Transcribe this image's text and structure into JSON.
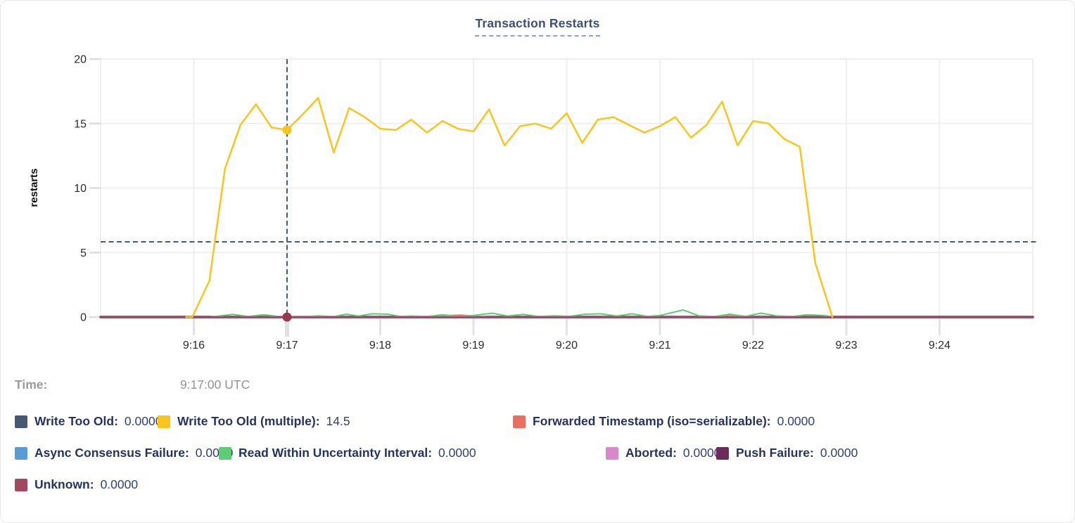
{
  "title": "Transaction Restarts",
  "tooltip": {
    "time_label": "Time:",
    "time_value": "9:17:00 UTC"
  },
  "legend": {
    "rows": [
      {
        "items": [
          {
            "label": "Write Too Old:",
            "value": "0.0000",
            "color": "#475872"
          },
          {
            "label": "Write Too Old (multiple):",
            "value": "14.5",
            "color": "#f8c51f"
          },
          {
            "label": "Forwarded Timestamp (iso=serializable):",
            "value": "0.0000",
            "color": "#e86f62"
          }
        ]
      },
      {
        "items": [
          {
            "label": "Async Consensus Failure:",
            "value": "0.0000",
            "color": "#5b9bd3"
          },
          {
            "label": "Read Within Uncertainty Interval:",
            "value": "0.0000",
            "color": "#5ecb77"
          },
          {
            "label": "Aborted:",
            "value": "0.0000",
            "color": "#d989cb"
          },
          {
            "label": "Push Failure:",
            "value": "0.0000",
            "color": "#6b2c5c"
          }
        ]
      },
      {
        "items": [
          {
            "label": "Unknown:",
            "value": "0.0000",
            "color": "#a04a5e"
          }
        ]
      }
    ]
  },
  "chart_data": {
    "type": "line",
    "title": "Transaction Restarts",
    "xlabel": "",
    "ylabel": "restarts",
    "ylim": [
      0,
      20
    ],
    "yticks": [
      0,
      5,
      10,
      15,
      20
    ],
    "x_start": "9:15:00",
    "x_end": "9:25:00",
    "x_unit": "seconds after 9:15:00 UTC",
    "x_domain_seconds": [
      0,
      600
    ],
    "grid": true,
    "legend_position": "bottom",
    "xticks": [
      {
        "label": "9:16",
        "s": 60
      },
      {
        "label": "9:17",
        "s": 120
      },
      {
        "label": "9:18",
        "s": 180
      },
      {
        "label": "9:19",
        "s": 240
      },
      {
        "label": "9:20",
        "s": 300
      },
      {
        "label": "9:21",
        "s": 360
      },
      {
        "label": "9:22",
        "s": 420
      },
      {
        "label": "9:23",
        "s": 480
      },
      {
        "label": "9:24",
        "s": 540
      }
    ],
    "crosshair": {
      "time": "9:17:00",
      "s": 120,
      "hline_value": 5.83,
      "dots": [
        {
          "series": "Write Too Old (multiple)",
          "value": 14.5
        },
        {
          "series": "Unknown",
          "value": 0
        }
      ]
    },
    "series": [
      {
        "name": "Write Too Old",
        "color": "#475872",
        "points": [
          [
            0,
            0
          ],
          [
            600,
            0
          ]
        ]
      },
      {
        "name": "Async Consensus Failure",
        "color": "#5b9bd3",
        "points": [
          [
            0,
            0
          ],
          [
            600,
            0
          ]
        ]
      },
      {
        "name": "Aborted",
        "color": "#d989cb",
        "points": [
          [
            0,
            0
          ],
          [
            600,
            0
          ]
        ]
      },
      {
        "name": "Push Failure",
        "color": "#6b2c5c",
        "points": [
          [
            0,
            0
          ],
          [
            600,
            0
          ]
        ]
      },
      {
        "name": "Forwarded Timestamp (iso=serializable)",
        "color": "#e86f62",
        "points": [
          [
            0,
            0
          ],
          [
            215,
            0
          ],
          [
            225,
            0.12
          ],
          [
            232,
            0.15
          ],
          [
            242,
            0.06
          ],
          [
            250,
            0
          ],
          [
            395,
            0
          ],
          [
            403,
            0.1
          ],
          [
            412,
            0.08
          ],
          [
            420,
            0
          ],
          [
            600,
            0
          ]
        ]
      },
      {
        "name": "Read Within Uncertainty Interval",
        "color": "#5ecb77",
        "points": [
          [
            70,
            0
          ],
          [
            85,
            0.2
          ],
          [
            95,
            0.05
          ],
          [
            105,
            0.18
          ],
          [
            115,
            0.04
          ],
          [
            125,
            0.05
          ],
          [
            132,
            0.03
          ],
          [
            140,
            0.1
          ],
          [
            150,
            0.04
          ],
          [
            158,
            0.22
          ],
          [
            166,
            0.08
          ],
          [
            175,
            0.25
          ],
          [
            185,
            0.22
          ],
          [
            193,
            0.05
          ],
          [
            200,
            0.08
          ],
          [
            210,
            0.04
          ],
          [
            220,
            0.18
          ],
          [
            230,
            0.05
          ],
          [
            240,
            0.12
          ],
          [
            252,
            0.3
          ],
          [
            262,
            0.08
          ],
          [
            272,
            0.2
          ],
          [
            282,
            0.05
          ],
          [
            292,
            0.1
          ],
          [
            302,
            0.06
          ],
          [
            312,
            0.22
          ],
          [
            322,
            0.25
          ],
          [
            332,
            0.08
          ],
          [
            342,
            0.25
          ],
          [
            352,
            0.05
          ],
          [
            360,
            0.12
          ],
          [
            375,
            0.55
          ],
          [
            385,
            0.1
          ],
          [
            395,
            0.04
          ],
          [
            405,
            0.22
          ],
          [
            415,
            0.05
          ],
          [
            425,
            0.3
          ],
          [
            435,
            0.1
          ],
          [
            445,
            0.04
          ],
          [
            455,
            0.18
          ],
          [
            465,
            0.12
          ],
          [
            471,
            0.03
          ]
        ]
      },
      {
        "name": "Unknown",
        "color": "#a04a5e",
        "points": [
          [
            0,
            0
          ],
          [
            600,
            0
          ]
        ]
      },
      {
        "name": "Write Too Old (multiple)",
        "color": "#f8c51f",
        "points": [
          [
            55,
            0
          ],
          [
            59,
            0
          ],
          [
            70,
            2.8
          ],
          [
            80,
            11.5
          ],
          [
            90,
            14.9
          ],
          [
            100,
            16.5
          ],
          [
            110,
            14.7
          ],
          [
            120,
            14.5
          ],
          [
            130,
            15.7
          ],
          [
            140,
            17.0
          ],
          [
            150,
            12.75
          ],
          [
            160,
            16.2
          ],
          [
            170,
            15.5
          ],
          [
            180,
            14.6
          ],
          [
            190,
            14.5
          ],
          [
            200,
            15.3
          ],
          [
            210,
            14.3
          ],
          [
            220,
            15.2
          ],
          [
            230,
            14.6
          ],
          [
            240,
            14.4
          ],
          [
            250,
            16.1
          ],
          [
            260,
            13.3
          ],
          [
            270,
            14.8
          ],
          [
            280,
            15.0
          ],
          [
            290,
            14.6
          ],
          [
            300,
            15.8
          ],
          [
            310,
            13.5
          ],
          [
            320,
            15.3
          ],
          [
            330,
            15.5
          ],
          [
            340,
            14.9
          ],
          [
            350,
            14.3
          ],
          [
            360,
            14.8
          ],
          [
            370,
            15.5
          ],
          [
            380,
            13.9
          ],
          [
            390,
            14.9
          ],
          [
            400,
            16.7
          ],
          [
            410,
            13.3
          ],
          [
            420,
            15.2
          ],
          [
            430,
            15.0
          ],
          [
            440,
            13.8
          ],
          [
            450,
            13.2
          ],
          [
            460,
            4.2
          ],
          [
            471,
            0
          ]
        ]
      }
    ]
  },
  "colors": {
    "title": "#3d4f73",
    "legend_label": "#26335f",
    "time_text": "#9a9a9a",
    "grid": "#ececec",
    "crosshair": "#3f5d73",
    "axis_text": "#2b2b2b"
  }
}
